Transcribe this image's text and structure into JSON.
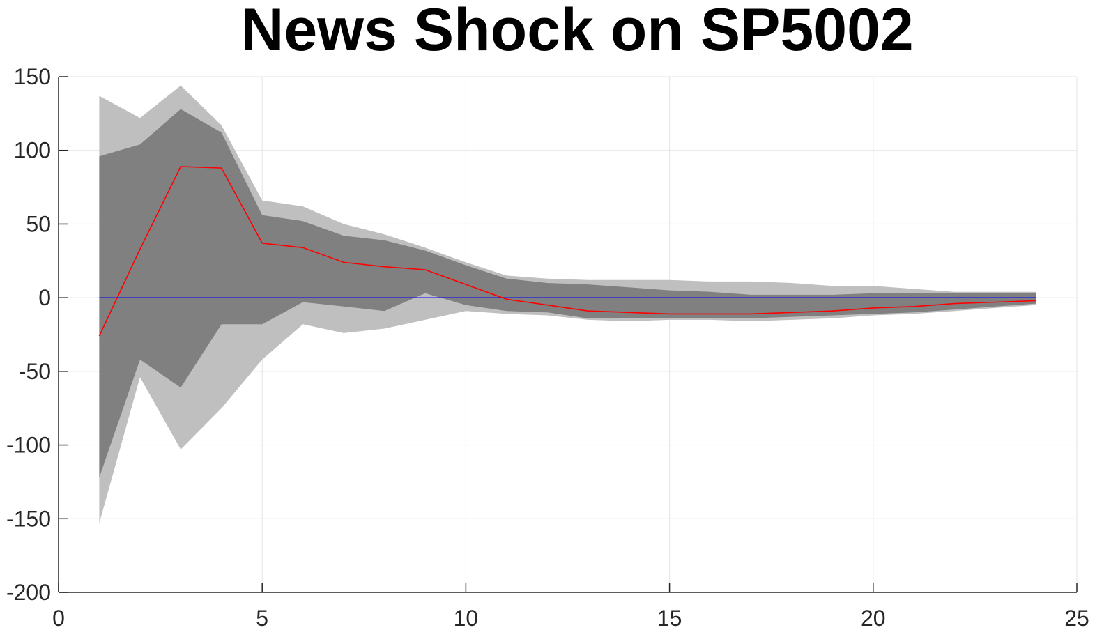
{
  "chart_data": {
    "type": "area",
    "title": "News Shock on SP5002",
    "xlabel": "",
    "ylabel": "",
    "xlim": [
      0,
      25
    ],
    "ylim": [
      -200,
      150
    ],
    "x_ticks": [
      0,
      5,
      10,
      15,
      20,
      25
    ],
    "y_ticks": [
      150,
      100,
      50,
      0,
      -50,
      -100,
      -150,
      -200
    ],
    "x_tick_labels": [
      "0",
      "5",
      "10",
      "15",
      "20",
      "25"
    ],
    "y_tick_labels": [
      "150",
      "100",
      "50",
      "0",
      "-50",
      "-100",
      "-150",
      "-200"
    ],
    "grid": true,
    "colors": {
      "outer_band": "#bfbfbf",
      "inner_band": "#808080",
      "response_line": "#ff0000",
      "zero_line": "#0000ff",
      "grid": "#e3e3e3",
      "axis": "#262626"
    },
    "x": [
      1,
      2,
      3,
      4,
      5,
      6,
      7,
      8,
      9,
      10,
      11,
      12,
      13,
      14,
      15,
      16,
      17,
      18,
      19,
      20,
      21,
      22,
      23,
      24
    ],
    "series": [
      {
        "role": "outer-band-upper",
        "values": [
          137,
          122,
          144,
          117,
          66,
          62,
          50,
          43,
          34,
          24,
          15,
          13,
          12,
          12,
          12,
          11,
          11,
          10,
          8,
          8,
          6,
          4,
          4,
          4
        ]
      },
      {
        "role": "outer-band-lower",
        "values": [
          -153,
          -54,
          -103,
          -75,
          -42,
          -18,
          -24,
          -21,
          -15,
          -9,
          -11,
          -12,
          -15,
          -16,
          -15,
          -15,
          -16,
          -15,
          -14,
          -12,
          -11,
          -9,
          -7,
          -5
        ]
      },
      {
        "role": "inner-band-upper",
        "values": [
          96,
          104,
          128,
          112,
          56,
          52,
          42,
          39,
          32,
          22,
          13,
          10,
          9,
          7,
          5,
          4,
          2,
          2,
          2,
          3,
          3,
          3,
          3,
          3
        ]
      },
      {
        "role": "inner-band-lower",
        "values": [
          -122,
          -42,
          -61,
          -18,
          -18,
          -3,
          -6,
          -9,
          3,
          -5,
          -9,
          -10,
          -14,
          -14,
          -14,
          -14,
          -14,
          -13,
          -12,
          -11,
          -10,
          -8,
          -6,
          -4
        ]
      },
      {
        "role": "median-response",
        "values": [
          -26,
          33,
          89,
          88,
          37,
          34,
          24,
          21,
          19,
          9,
          -1,
          -5,
          -9,
          -10,
          -11,
          -11,
          -11,
          -10,
          -9,
          -7,
          -6,
          -4,
          -3,
          -2
        ]
      },
      {
        "role": "zero-line",
        "values": [
          0,
          0,
          0,
          0,
          0,
          0,
          0,
          0,
          0,
          0,
          0,
          0,
          0,
          0,
          0,
          0,
          0,
          0,
          0,
          0,
          0,
          0,
          0,
          0
        ]
      }
    ]
  }
}
